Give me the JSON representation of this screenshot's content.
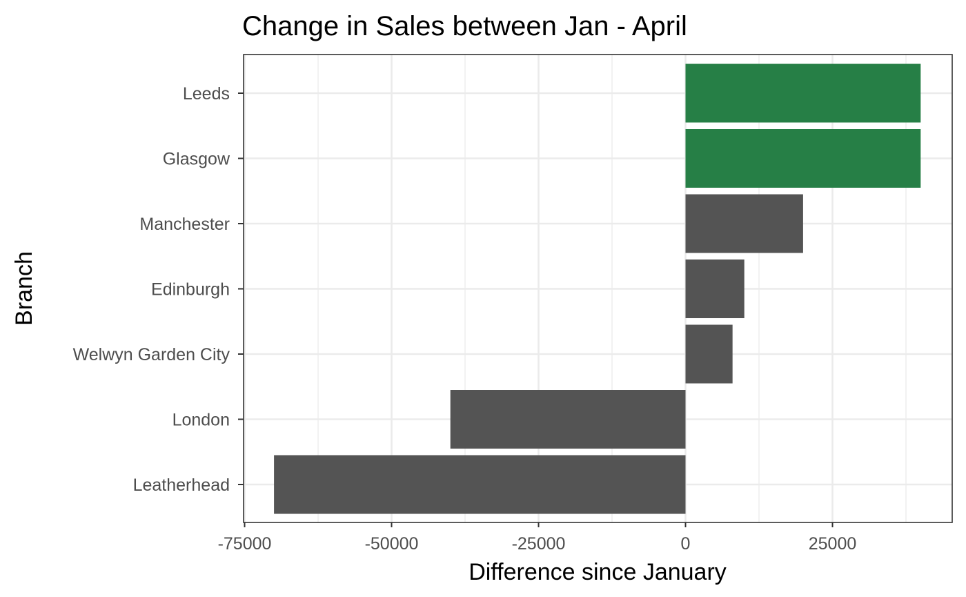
{
  "chart_data": {
    "type": "bar",
    "orientation": "horizontal",
    "title": "Change in Sales between Jan - April",
    "xlabel": "Difference since January",
    "ylabel": "Branch",
    "categories": [
      "Leeds",
      "Glasgow",
      "Manchester",
      "Edinburgh",
      "Welwyn Garden City",
      "London",
      "Leatherhead"
    ],
    "values": [
      40000,
      40000,
      20000,
      10000,
      8000,
      -40000,
      -70000
    ],
    "highlight": [
      true,
      true,
      false,
      false,
      false,
      false,
      false
    ],
    "xlim": [
      -75000,
      45000
    ],
    "xticks": [
      -75000,
      -50000,
      -25000,
      0,
      25000
    ],
    "xtick_labels": [
      "-75000",
      "-50000",
      "-25000",
      "0",
      "25000"
    ],
    "grid": true,
    "legend": "none",
    "colors": {
      "highlight": "#267F46",
      "default": "#545454",
      "grid": "#EBEBEB",
      "panel_border": "#333333",
      "tick_text": "#4D4D4D"
    }
  }
}
